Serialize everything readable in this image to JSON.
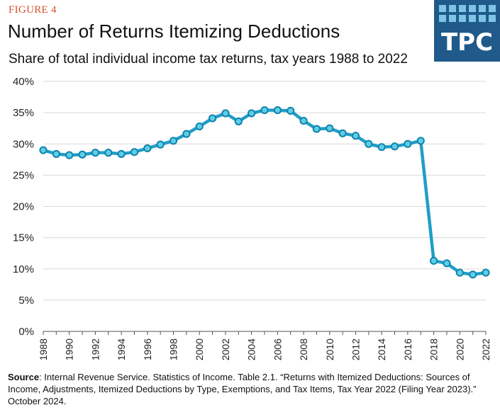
{
  "header": {
    "figure_label": "FIGURE 4",
    "title": "Number of Returns Itemizing Deductions",
    "subtitle": "Share of total individual income tax returns, tax years 1988 to 2022"
  },
  "logo": {
    "text": "TPC"
  },
  "footer": {
    "source_label": "Source",
    "source_text": ": Internal Revenue Service. Statistics of Income. Table 2.1. “Returns with Itemized Deductions:  Sources of Income, Adjustments, Itemized Deductions by Type, Exemptions, and Tax Items, Tax Year 2022 (Filing Year 2023).” October 2024."
  },
  "colors": {
    "line": "#1f9ec9",
    "marker_fill": "#5ccfe8",
    "marker_stroke": "#1483ab",
    "grid": "#d9d9d9",
    "figure_label": "#d4532a",
    "logo_bg": "#1f5a8a",
    "logo_squares": "#7fc4e6"
  },
  "chart_data": {
    "type": "line",
    "title": "Number of Returns Itemizing Deductions",
    "subtitle": "Share of total individual income tax returns, tax years 1988 to 2022",
    "xlabel": "",
    "ylabel": "",
    "x": [
      1988,
      1989,
      1990,
      1991,
      1992,
      1993,
      1994,
      1995,
      1996,
      1997,
      1998,
      1999,
      2000,
      2001,
      2002,
      2003,
      2004,
      2005,
      2006,
      2007,
      2008,
      2009,
      2010,
      2011,
      2012,
      2013,
      2014,
      2015,
      2016,
      2017,
      2018,
      2019,
      2020,
      2021,
      2022
    ],
    "values": [
      29.0,
      28.4,
      28.2,
      28.3,
      28.6,
      28.6,
      28.4,
      28.7,
      29.3,
      29.9,
      30.5,
      31.6,
      32.8,
      34.1,
      34.9,
      33.6,
      34.9,
      35.4,
      35.4,
      35.3,
      33.7,
      32.4,
      32.5,
      31.7,
      31.3,
      30.0,
      29.5,
      29.6,
      30.0,
      30.5,
      11.3,
      10.9,
      9.4,
      9.1,
      9.4
    ],
    "xlim": [
      1988,
      2022
    ],
    "ylim": [
      0,
      40
    ],
    "x_ticks": [
      "1988",
      "1990",
      "1992",
      "1994",
      "1996",
      "1998",
      "2000",
      "2002",
      "2004",
      "2006",
      "2008",
      "2010",
      "2012",
      "2014",
      "2016",
      "2018",
      "2020",
      "2022"
    ],
    "y_ticks": [
      "0%",
      "5%",
      "10%",
      "15%",
      "20%",
      "25%",
      "30%",
      "35%",
      "40%"
    ],
    "grid": "horizontal",
    "legend": "none"
  }
}
